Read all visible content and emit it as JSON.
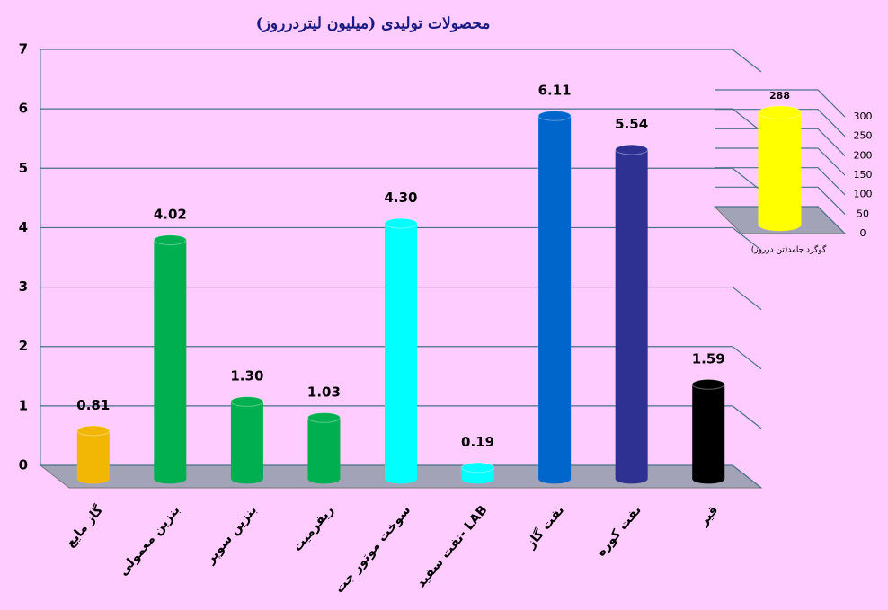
{
  "chart_data": [
    {
      "type": "bar",
      "title": "محصولات تولیدی (میلیون لیتردرروز)",
      "categories": [
        "گاز مایع",
        "بنزین معمولی",
        "بنزین سوپر",
        "ریفرمیت",
        "سوخت موتور جت",
        "نفت سفید- LAB",
        "نفت گاز",
        "نفت کوره",
        "قیر"
      ],
      "values": [
        0.81,
        4.02,
        1.3,
        1.03,
        4.3,
        0.19,
        6.11,
        5.54,
        1.59
      ],
      "value_labels": [
        "0.81",
        "4.02",
        "1.30",
        "1.03",
        "4.30",
        "0.19",
        "6.11",
        "5.54",
        "1.59"
      ],
      "colors": [
        "#f2b705",
        "#00b050",
        "#00b050",
        "#00b050",
        "#00ffff",
        "#00ffff",
        "#0066cc",
        "#2e3192",
        "#000000"
      ],
      "ylim": [
        0,
        7
      ],
      "yticks": [
        0,
        1,
        2,
        3,
        4,
        5,
        6,
        7
      ],
      "grid": true
    },
    {
      "type": "bar",
      "categories": [
        "گوگرد جامد(تن درروز)"
      ],
      "values": [
        288
      ],
      "colors": [
        "#ffff00"
      ],
      "ylim": [
        0,
        300
      ],
      "yticks": [
        0,
        50,
        100,
        150,
        200,
        250,
        300
      ],
      "grid": true
    }
  ]
}
